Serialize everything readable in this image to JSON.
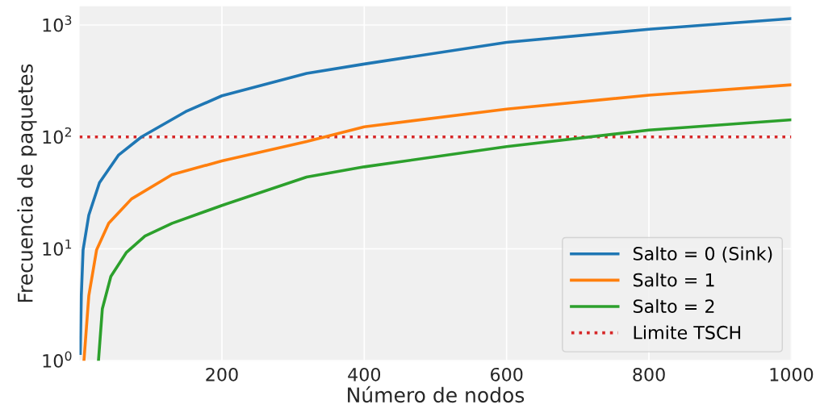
{
  "chart_data": {
    "type": "line",
    "xlabel": "Número de nodos",
    "ylabel": "Frecuencia de paquetes",
    "log": "y",
    "grid": true,
    "legend": "bottom right",
    "line_style": "solid",
    "marker": "none",
    "xlim": [
      0,
      1000
    ],
    "xticks": [
      200,
      400,
      600,
      800,
      1000
    ],
    "ylim": [
      1,
      1470
    ],
    "yticks": [
      {
        "value": 1,
        "label": "10$^{0}$"
      },
      {
        "value": 10,
        "label": "10$^{1}$"
      },
      {
        "value": 100,
        "label": "10$^{2}$"
      },
      {
        "value": 1000,
        "label": "10$^{3}$"
      }
    ],
    "series": [
      {
        "name": "Salto = 0 (Sink)",
        "color": "#1f77b4",
        "x": [
          1,
          2.5,
          5,
          13,
          28,
          55,
          87,
          149,
          200,
          319,
          400,
          600,
          800,
          1000
        ],
        "values": [
          1.16,
          3.8,
          9.8,
          20,
          39,
          69,
          100,
          168,
          233,
          369,
          448,
          700,
          916,
          1140
        ]
      },
      {
        "name": "Salto = 1",
        "color": "#ff7f0e",
        "x": [
          6.2,
          13,
          24,
          41,
          73,
          130,
          200,
          319,
          400,
          600,
          800,
          1000
        ],
        "values": [
          1,
          3.8,
          9.8,
          16.9,
          27.9,
          46,
          61,
          91,
          123,
          177,
          236,
          292
        ]
      },
      {
        "name": "Salto = 2",
        "color": "#2ca02c",
        "x": [
          26.6,
          32,
          44,
          66,
          92,
          130,
          200,
          319,
          400,
          600,
          800,
          1000
        ],
        "values": [
          1,
          2.9,
          5.66,
          9.3,
          13,
          16.9,
          24.4,
          43.8,
          54,
          82,
          115,
          142
        ]
      }
    ],
    "ref_lines": [
      {
        "axis": "y",
        "value": 100,
        "label": "Limite TSCH",
        "color": "#d62728",
        "line_style": "dotted"
      }
    ]
  }
}
